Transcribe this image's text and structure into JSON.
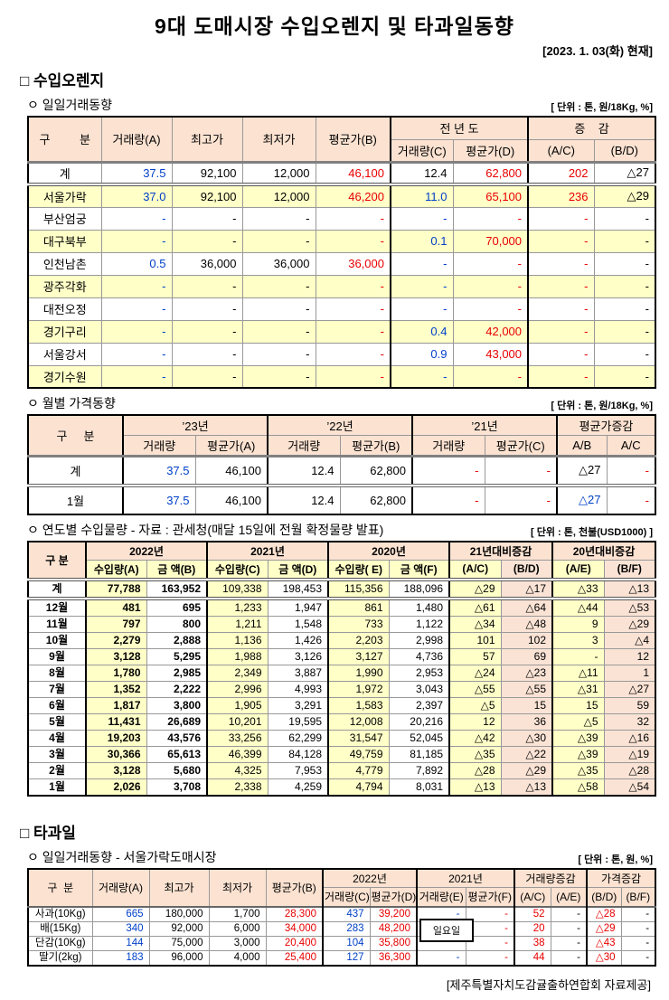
{
  "page": {
    "title": "9대 도매시장 수입오렌지 및 타과일동향",
    "date": "[2023. 1. 03(화) 현재]",
    "footer": "[제주특별자치도감귤출하연합회 자료제공]"
  },
  "colors": {
    "header_bg": "#FBE2D1",
    "row_highlight_yellow": "#FFFFC8",
    "col_highlight_peach": "#FAE3D5",
    "value_blue": "#0040C8",
    "value_red": "#E80000"
  },
  "section_orange": {
    "title": "□ 수입오렌지",
    "daily": {
      "label": "ㅇ 일일거래동향",
      "unit": "[ 단위 : 톤, 원/18Kg, %]",
      "header": {
        "gubun": "구         분",
        "vol_a": "거래량(A)",
        "high": "최고가",
        "low": "최저가",
        "avg_b": "평균가(B)",
        "prev_year": "전 년 도",
        "prev_vol_c": "거래량(C)",
        "prev_avg_d": "평균가(D)",
        "change": "증    감",
        "ac": "(A/C)",
        "bd": "(B/D)"
      },
      "rows": [
        {
          "n": "계",
          "c": [
            [
              "37.5",
              "b"
            ],
            [
              "92,100"
            ],
            [
              "12,000"
            ],
            [
              "46,100",
              "r"
            ],
            [
              "12.4"
            ],
            [
              "62,800",
              "r"
            ],
            [
              "202",
              "r"
            ],
            [
              "△27"
            ]
          ]
        },
        {
          "n": "서울가락",
          "c": [
            [
              "37.0",
              "b"
            ],
            [
              "92,100"
            ],
            [
              "12,000"
            ],
            [
              "46,200",
              "r"
            ],
            [
              "11.0",
              "b"
            ],
            [
              "65,100",
              "r"
            ],
            [
              "236",
              "r"
            ],
            [
              "△29"
            ]
          ]
        },
        {
          "n": "부산엄궁",
          "c": [
            [
              "-",
              "b"
            ],
            [
              "-"
            ],
            [
              "-"
            ],
            [
              "-",
              "r"
            ],
            [
              "-",
              "b"
            ],
            [
              "-",
              "r"
            ],
            [
              "-",
              "r"
            ],
            [
              "-"
            ]
          ]
        },
        {
          "n": "대구북부",
          "c": [
            [
              "-",
              "b"
            ],
            [
              "-"
            ],
            [
              "-"
            ],
            [
              "-",
              "r"
            ],
            [
              "0.1",
              "b"
            ],
            [
              "70,000",
              "r"
            ],
            [
              "-",
              "r"
            ],
            [
              "-"
            ]
          ]
        },
        {
          "n": "인천남촌",
          "c": [
            [
              "0.5",
              "b"
            ],
            [
              "36,000"
            ],
            [
              "36,000"
            ],
            [
              "36,000",
              "r"
            ],
            [
              "-",
              "b"
            ],
            [
              "-",
              "r"
            ],
            [
              "-",
              "r"
            ],
            [
              "-"
            ]
          ]
        },
        {
          "n": "광주각화",
          "c": [
            [
              "-",
              "b"
            ],
            [
              "-"
            ],
            [
              "-"
            ],
            [
              "-",
              "r"
            ],
            [
              "-",
              "b"
            ],
            [
              "-",
              "r"
            ],
            [
              "-",
              "r"
            ],
            [
              "-"
            ]
          ]
        },
        {
          "n": "대전오정",
          "c": [
            [
              "-",
              "b"
            ],
            [
              "-"
            ],
            [
              "-"
            ],
            [
              "-",
              "r"
            ],
            [
              "-",
              "b"
            ],
            [
              "-",
              "r"
            ],
            [
              "-",
              "r"
            ],
            [
              "-"
            ]
          ]
        },
        {
          "n": "경기구리",
          "c": [
            [
              "-",
              "b"
            ],
            [
              "-"
            ],
            [
              "-"
            ],
            [
              "-",
              "r"
            ],
            [
              "0.4",
              "b"
            ],
            [
              "42,000",
              "r"
            ],
            [
              "-",
              "r"
            ],
            [
              "-"
            ]
          ]
        },
        {
          "n": "서울강서",
          "c": [
            [
              "-",
              "b"
            ],
            [
              "-"
            ],
            [
              "-"
            ],
            [
              "-",
              "r"
            ],
            [
              "0.9",
              "b"
            ],
            [
              "43,000",
              "r"
            ],
            [
              "-",
              "r"
            ],
            [
              "-"
            ]
          ]
        },
        {
          "n": "경기수원",
          "c": [
            [
              "-",
              "b"
            ],
            [
              "-"
            ],
            [
              "-"
            ],
            [
              "-",
              "r"
            ],
            [
              "-",
              "b"
            ],
            [
              "-",
              "r"
            ],
            [
              "-",
              "r"
            ],
            [
              "-"
            ]
          ]
        }
      ]
    },
    "monthly": {
      "label": "ㅇ 월별 가격동향",
      "unit": "[ 단위 : 톤, 원/18Kg, %]",
      "header": {
        "gubun": "구     분",
        "y23": "’23년",
        "y22": "’22년",
        "y21": "’21년",
        "avg_change": "평균가증감",
        "vol": "거래량",
        "avg_a": "평균가(A)",
        "avg_b": "평균가(B)",
        "avg_c": "평균가(C)",
        "ab": "A/B",
        "ac": "A/C"
      },
      "rows": [
        {
          "n": "계",
          "c": [
            [
              "37.5",
              "b"
            ],
            [
              "46,100"
            ],
            [
              "12.4"
            ],
            [
              "62,800"
            ],
            [
              "-",
              "r"
            ],
            [
              "-",
              "r"
            ],
            [
              "△27"
            ],
            [
              "-",
              "r"
            ]
          ]
        },
        {
          "n": "1월",
          "c": [
            [
              "37.5",
              "b"
            ],
            [
              "46,100"
            ],
            [
              "12.4"
            ],
            [
              "62,800"
            ],
            [
              "-",
              "r"
            ],
            [
              "-",
              "r"
            ],
            [
              "△27",
              "b"
            ],
            [
              "-",
              "r"
            ]
          ]
        }
      ]
    },
    "yearly": {
      "label": "ㅇ 연도별 수입물량 - 자료 : 관세청(매달 15일에 전월 확정물량 발표)",
      "unit": "[ 단위 : 톤, 천불(USD1000) ]",
      "header": {
        "gubun": "구 분",
        "y2022": "2022년",
        "y2021": "2021년",
        "y2020": "2020년",
        "vs21": "21년대비증감",
        "vs20": "20년대비증감",
        "import_a": "수입량(A)",
        "amount_b": "금  액(B)",
        "import_c": "수입량(C)",
        "amount_d": "금  액(D)",
        "import_e": "수입량( E)",
        "amount_f": "금  액(F)",
        "ac": "(A/C)",
        "bd": "(B/D)",
        "ae": "(A/E)",
        "bf": "(B/F)"
      },
      "rows": [
        {
          "n": "계",
          "c": [
            [
              "77,788"
            ],
            [
              "163,952"
            ],
            [
              "109,338"
            ],
            [
              "198,453"
            ],
            [
              "115,356"
            ],
            [
              "188,096"
            ],
            [
              "△29"
            ],
            [
              "△17"
            ],
            [
              "△33"
            ],
            [
              "△13"
            ]
          ]
        },
        {
          "n": "12월",
          "c": [
            [
              "481"
            ],
            [
              "695"
            ],
            [
              "1,233"
            ],
            [
              "1,947"
            ],
            [
              "861"
            ],
            [
              "1,480"
            ],
            [
              "△61"
            ],
            [
              "△64"
            ],
            [
              "△44"
            ],
            [
              "△53"
            ]
          ]
        },
        {
          "n": "11월",
          "c": [
            [
              "797"
            ],
            [
              "800"
            ],
            [
              "1,211"
            ],
            [
              "1,548"
            ],
            [
              "733"
            ],
            [
              "1,122"
            ],
            [
              "△34"
            ],
            [
              "△48"
            ],
            [
              "9"
            ],
            [
              "△29"
            ]
          ]
        },
        {
          "n": "10월",
          "c": [
            [
              "2,279"
            ],
            [
              "2,888"
            ],
            [
              "1,136"
            ],
            [
              "1,426"
            ],
            [
              "2,203"
            ],
            [
              "2,998"
            ],
            [
              "101"
            ],
            [
              "102"
            ],
            [
              "3"
            ],
            [
              "△4"
            ]
          ]
        },
        {
          "n": "9월",
          "c": [
            [
              "3,128"
            ],
            [
              "5,295"
            ],
            [
              "1,988"
            ],
            [
              "3,126"
            ],
            [
              "3,127"
            ],
            [
              "4,736"
            ],
            [
              "57"
            ],
            [
              "69"
            ],
            [
              "-"
            ],
            [
              "12"
            ]
          ]
        },
        {
          "n": "8월",
          "c": [
            [
              "1,780"
            ],
            [
              "2,985"
            ],
            [
              "2,349"
            ],
            [
              "3,887"
            ],
            [
              "1,990"
            ],
            [
              "2,953"
            ],
            [
              "△24"
            ],
            [
              "△23"
            ],
            [
              "△11"
            ],
            [
              "1"
            ]
          ]
        },
        {
          "n": "7월",
          "c": [
            [
              "1,352"
            ],
            [
              "2,222"
            ],
            [
              "2,996"
            ],
            [
              "4,993"
            ],
            [
              "1,972"
            ],
            [
              "3,043"
            ],
            [
              "△55"
            ],
            [
              "△55"
            ],
            [
              "△31"
            ],
            [
              "△27"
            ]
          ]
        },
        {
          "n": "6월",
          "c": [
            [
              "1,817"
            ],
            [
              "3,800"
            ],
            [
              "1,905"
            ],
            [
              "3,291"
            ],
            [
              "1,583"
            ],
            [
              "2,397"
            ],
            [
              "△5"
            ],
            [
              "15"
            ],
            [
              "15"
            ],
            [
              "59"
            ]
          ]
        },
        {
          "n": "5월",
          "c": [
            [
              "11,431"
            ],
            [
              "26,689"
            ],
            [
              "10,201"
            ],
            [
              "19,595"
            ],
            [
              "12,008"
            ],
            [
              "20,216"
            ],
            [
              "12"
            ],
            [
              "36"
            ],
            [
              "△5"
            ],
            [
              "32"
            ]
          ]
        },
        {
          "n": "4월",
          "c": [
            [
              "19,203"
            ],
            [
              "43,576"
            ],
            [
              "33,256"
            ],
            [
              "62,299"
            ],
            [
              "31,547"
            ],
            [
              "52,045"
            ],
            [
              "△42"
            ],
            [
              "△30"
            ],
            [
              "△39"
            ],
            [
              "△16"
            ]
          ]
        },
        {
          "n": "3월",
          "c": [
            [
              "30,366"
            ],
            [
              "65,613"
            ],
            [
              "46,399"
            ],
            [
              "84,128"
            ],
            [
              "49,759"
            ],
            [
              "81,185"
            ],
            [
              "△35"
            ],
            [
              "△22"
            ],
            [
              "△39"
            ],
            [
              "△19"
            ]
          ]
        },
        {
          "n": "2월",
          "c": [
            [
              "3,128"
            ],
            [
              "5,680"
            ],
            [
              "4,325"
            ],
            [
              "7,953"
            ],
            [
              "4,779"
            ],
            [
              "7,892"
            ],
            [
              "△28"
            ],
            [
              "△29"
            ],
            [
              "△35"
            ],
            [
              "△28"
            ]
          ]
        },
        {
          "n": "1월",
          "c": [
            [
              "2,026"
            ],
            [
              "3,708"
            ],
            [
              "2,338"
            ],
            [
              "4,259"
            ],
            [
              "4,794"
            ],
            [
              "8,031"
            ],
            [
              "△13"
            ],
            [
              "△13"
            ],
            [
              "△58"
            ],
            [
              "△54"
            ]
          ]
        }
      ]
    }
  },
  "section_fruit": {
    "title": "□ 타과일",
    "daily": {
      "label": "ㅇ 일일거래동향 - 서울가락도매시장",
      "unit": "[ 단위 : 톤, 원, %]",
      "sunday_note": "일요일",
      "header": {
        "gubun": "구  분",
        "vol_a": "거래량(A)",
        "high": "최고가",
        "low": "최저가",
        "avg_b": "평균가(B)",
        "y2022": "2022년",
        "y2021": "2021년",
        "vol_change": "거래량증감",
        "price_change": "가격증감",
        "vol_c": "거래량(C)",
        "avg_d": "평균가(D)",
        "vol_e": "거래량(E)",
        "avg_f": "평균가(F)",
        "ac": "(A/C)",
        "ae": "(A/E)",
        "bd": "(B/D)",
        "bf": "(B/F)"
      },
      "rows": [
        {
          "n": "사과(10Kg)",
          "c": [
            [
              "665",
              "b"
            ],
            [
              "180,000"
            ],
            [
              "1,700"
            ],
            [
              "28,300",
              "r"
            ],
            [
              "437",
              "b"
            ],
            [
              "39,200",
              "r"
            ],
            [
              "-",
              "b"
            ],
            [
              "-",
              "r"
            ],
            [
              "52",
              "r"
            ],
            [
              "-"
            ],
            [
              "△28",
              "r"
            ],
            [
              "-"
            ]
          ]
        },
        {
          "n": "배(15Kg)",
          "c": [
            [
              "340",
              "b"
            ],
            [
              "92,000"
            ],
            [
              "6,000"
            ],
            [
              "34,000",
              "r"
            ],
            [
              "283",
              "b"
            ],
            [
              "48,200",
              "r"
            ],
            [
              ""
            ],
            [
              "-",
              "r"
            ],
            [
              "20",
              "r"
            ],
            [
              "-"
            ],
            [
              "△29",
              "r"
            ],
            [
              "-"
            ]
          ]
        },
        {
          "n": "단감(10Kg)",
          "c": [
            [
              "144",
              "b"
            ],
            [
              "75,000"
            ],
            [
              "3,000"
            ],
            [
              "20,400",
              "r"
            ],
            [
              "104",
              "b"
            ],
            [
              "35,800",
              "r"
            ],
            [
              ""
            ],
            [
              "-",
              "r"
            ],
            [
              "38",
              "r"
            ],
            [
              "-"
            ],
            [
              "△43",
              "r"
            ],
            [
              "-"
            ]
          ]
        },
        {
          "n": "딸기(2kg)",
          "c": [
            [
              "183",
              "b"
            ],
            [
              "96,000"
            ],
            [
              "4,000"
            ],
            [
              "25,400",
              "r"
            ],
            [
              "127",
              "b"
            ],
            [
              "36,300",
              "r"
            ],
            [
              "-",
              "b"
            ],
            [
              "-",
              "r"
            ],
            [
              "44",
              "r"
            ],
            [
              "-"
            ],
            [
              "△30",
              "r"
            ],
            [
              "-"
            ]
          ]
        }
      ]
    }
  }
}
